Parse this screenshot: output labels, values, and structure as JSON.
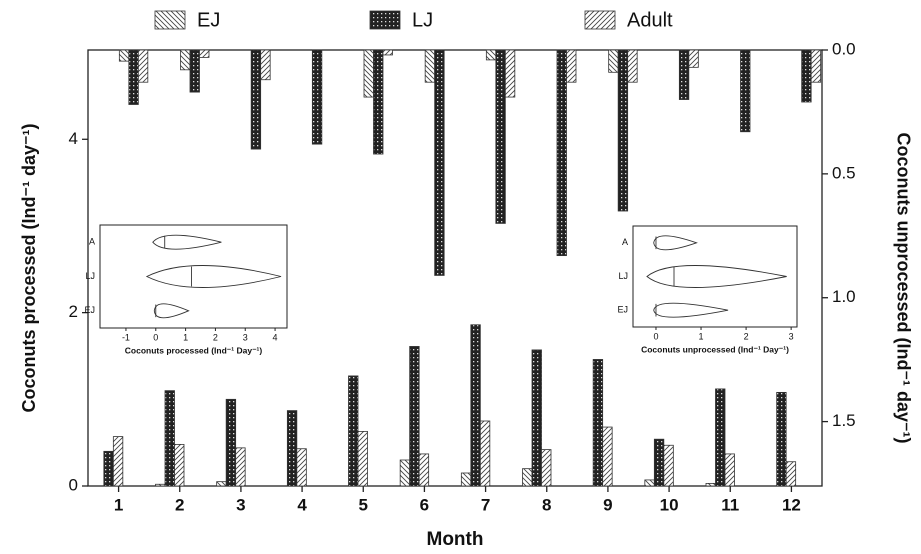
{
  "chart_data": [
    {
      "type": "bar",
      "xlabel": "Month",
      "ylabel": "Coconuts processed (Ind⁻¹ day⁻¹)",
      "y2label": "Coconuts unprocessed (Ind⁻¹ day⁻¹)",
      "categories": [
        "1",
        "2",
        "3",
        "4",
        "5",
        "6",
        "7",
        "8",
        "9",
        "10",
        "11",
        "12"
      ],
      "ylim": [
        0,
        5.03
      ],
      "yticks": [
        0,
        2,
        4
      ],
      "y2lim": [
        1.76,
        0
      ],
      "y2ticks": [
        {
          "value": 0,
          "label": "0.0"
        },
        0.5,
        {
          "value": 1,
          "label": "1.0"
        },
        1.5
      ],
      "series": [
        {
          "name": "EJ",
          "pattern": "back-hatch",
          "values": [
            0,
            0.02,
            0.05,
            0,
            0,
            0.3,
            0.15,
            0.2,
            0,
            0.07,
            0.03,
            0
          ]
        },
        {
          "name": "LJ",
          "pattern": "checker",
          "values": [
            0.4,
            1.1,
            1.0,
            0.87,
            1.27,
            1.61,
            1.86,
            1.57,
            1.46,
            0.54,
            1.12,
            1.08
          ]
        },
        {
          "name": "Adult",
          "pattern": "fwd-hatch",
          "values": [
            0.57,
            0.48,
            0.44,
            0.43,
            0.63,
            0.37,
            0.75,
            0.42,
            0.68,
            0.47,
            0.37,
            0.28
          ]
        },
        {
          "name": "EJ",
          "pattern": "back-hatch",
          "axis": "y2",
          "values": [
            0.045,
            0.08,
            0,
            0,
            0.19,
            0.13,
            0.04,
            0,
            0.09,
            0,
            0,
            0
          ]
        },
        {
          "name": "LJ",
          "pattern": "checker",
          "axis": "y2",
          "values": [
            0.22,
            0.17,
            0.4,
            0.38,
            0.42,
            0.91,
            0.7,
            0.83,
            0.65,
            0.2,
            0.33,
            0.21
          ]
        },
        {
          "name": "Adult",
          "pattern": "fwd-hatch",
          "axis": "y2",
          "values": [
            0.13,
            0.03,
            0.12,
            0,
            0.02,
            0,
            0.19,
            0.13,
            0.13,
            0.07,
            0,
            0.13
          ]
        }
      ]
    },
    {
      "type": "violin",
      "xlabel": "Coconuts processed (Ind⁻¹ Day⁻¹)",
      "categories": [
        "A",
        "LJ",
        "EJ"
      ],
      "xlim": [
        -1.87,
        4.4
      ],
      "xticks": [
        -1,
        0,
        1,
        2,
        3,
        4
      ],
      "mins": [
        -0.1,
        -0.3,
        -0.05
      ],
      "medians": [
        0.3,
        1.2,
        0
      ],
      "maxs": [
        2.2,
        4.2,
        1.1
      ]
    },
    {
      "type": "violin",
      "xlabel": "Coconuts unprocessed (Ind⁻¹ Day⁻¹)",
      "categories": [
        "A",
        "LJ",
        "EJ"
      ],
      "xlim": [
        -0.51,
        3.13
      ],
      "xticks": [
        0,
        1,
        2,
        3
      ],
      "mins": [
        -0.05,
        -0.2,
        -0.05
      ],
      "medians": [
        0,
        0.4,
        0
      ],
      "maxs": [
        0.9,
        2.9,
        1.6
      ]
    }
  ]
}
